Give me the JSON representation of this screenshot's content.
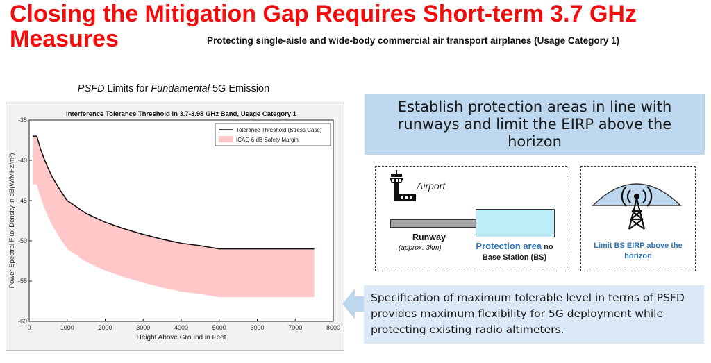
{
  "slide": {
    "title": "Closing the Mitigation Gap Requires Short-term 3.7 GHz Measures",
    "subtitle": "Protecting single-aisle and wide-body commercial air transport airplanes (Usage Category 1)",
    "chart_caption": {
      "part1": "PSFD",
      "part2": " Limits for ",
      "part3": "Fundamental",
      "part4": " 5G Emission"
    }
  },
  "right_panel": {
    "top_box": "Establish protection areas in line with runways and limit the EIRP above the horizon",
    "airport_label": "Airport",
    "runway_label": "Runway",
    "runway_sub": "(approx. 3km)",
    "protection_label": "Protection area",
    "protection_suffix": " no",
    "protection_line2": "Base Station (BS)",
    "eirp_label": "Limit BS EIRP above the horizon",
    "bottom_box": "Specification of maximum tolerable level in terms of PSFD provides maximum flexibility for 5G deployment while protecting existing radio altimeters."
  },
  "colors": {
    "title_red": "#f20d0d",
    "box_blue": "#bdd7ee",
    "accent_blue": "#2e75b6",
    "band_pink": "#ffc7c7"
  },
  "chart_data": {
    "type": "line",
    "title": "Interference Tolerance Threshold in 3.7-3.98 GHz Band, Usage Category 1",
    "xlabel": "Height Above Ground in Feet",
    "ylabel": "Power Spectral Flux Density in dB(W/MHz/m²)",
    "xlim": [
      0,
      8000
    ],
    "ylim": [
      -60,
      -35
    ],
    "xticks": [
      0,
      1000,
      2000,
      3000,
      4000,
      5000,
      6000,
      7000,
      8000
    ],
    "yticks": [
      -35,
      -40,
      -45,
      -50,
      -55,
      -60
    ],
    "grid": false,
    "legend_position": "top-right",
    "series": [
      {
        "name": "Tolerance Threshold (Stress Case)",
        "x": [
          100,
          200,
          300,
          400,
          500,
          600,
          800,
          1000,
          1500,
          2000,
          2500,
          3000,
          3500,
          4000,
          4500,
          5000,
          6000,
          7000,
          7500
        ],
        "y": [
          -37,
          -37,
          -38.6,
          -39.9,
          -41.0,
          -42.0,
          -43.6,
          -45.0,
          -46.6,
          -47.7,
          -48.5,
          -49.2,
          -49.8,
          -50.3,
          -50.6,
          -51,
          -51,
          -51,
          -51
        ]
      },
      {
        "name": "ICAO 6 dB Safety Margin",
        "type": "band",
        "x": [
          100,
          200,
          300,
          400,
          500,
          600,
          800,
          1000,
          1500,
          2000,
          2500,
          3000,
          3500,
          4000,
          4500,
          5000,
          6000,
          7000,
          7500
        ],
        "y_upper": [
          -37,
          -37,
          -38.6,
          -39.9,
          -41.0,
          -42.0,
          -43.6,
          -45.0,
          -46.6,
          -47.7,
          -48.5,
          -49.2,
          -49.8,
          -50.3,
          -50.6,
          -51,
          -51,
          -51,
          -51
        ],
        "y_lower": [
          -43,
          -43,
          -44.6,
          -45.9,
          -47.0,
          -48.0,
          -49.6,
          -51.0,
          -52.6,
          -53.7,
          -54.5,
          -55.2,
          -55.8,
          -56.3,
          -56.6,
          -57,
          -57,
          -57,
          -57
        ]
      }
    ]
  }
}
